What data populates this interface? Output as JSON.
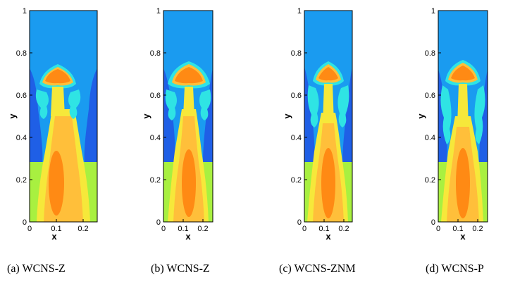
{
  "figure": {
    "panels": [
      {
        "caption": "(a) WCNS-Z",
        "xlabel": "x",
        "ylabel": "y",
        "xticks": [
          "0",
          "0.1",
          "0.2"
        ],
        "yticks": [
          "0",
          "0.2",
          "0.4",
          "0.6",
          "0.8",
          "1"
        ]
      },
      {
        "caption": "(b) WCNS-Z",
        "xlabel": "x",
        "ylabel": "y",
        "xticks": [
          "0",
          "0.1",
          "0.2"
        ],
        "yticks": [
          "0",
          "0.2",
          "0.4",
          "0.6",
          "0.8",
          "1"
        ]
      },
      {
        "caption": "(c) WCNS-ZNM",
        "xlabel": "x",
        "ylabel": "y",
        "xticks": [
          "0",
          "0.1",
          "0.2"
        ],
        "yticks": [
          "0",
          "0.2",
          "0.4",
          "0.6",
          "0.8",
          "1"
        ]
      },
      {
        "caption": "(d) WCNS-P",
        "xlabel": "x",
        "ylabel": "y",
        "xticks": [
          "0",
          "0.1",
          "0.2"
        ],
        "yticks": [
          "0",
          "0.2",
          "0.4",
          "0.6",
          "0.8",
          "1"
        ]
      }
    ],
    "colors": {
      "top_fluid": "#1a9bf0",
      "dark_blue": "#1f5fe6",
      "cyan": "#2fe4e4",
      "green": "#a8f040",
      "yellow": "#f6e83a",
      "light_orange": "#ffbf3a",
      "orange": "#ff8a14"
    }
  }
}
